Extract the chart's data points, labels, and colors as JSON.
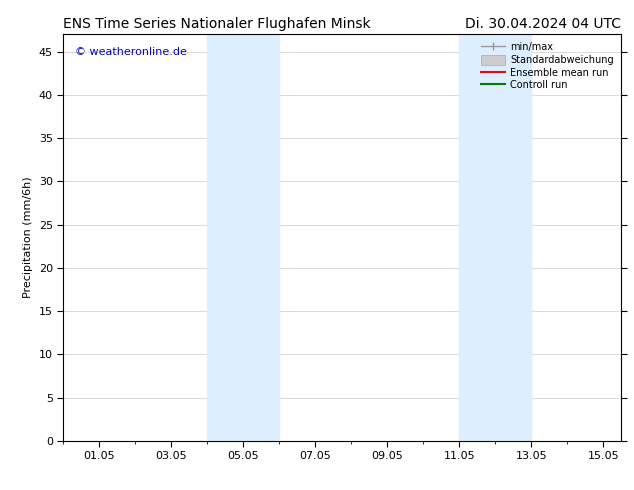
{
  "title_left": "ENS Time Series Nationaler Flughafen Minsk",
  "title_right": "Di. 30.04.2024 04 UTC",
  "ylabel": "Precipitation (mm/6h)",
  "watermark": "© weatheronline.de",
  "watermark_color": "#0000cc",
  "xlabel_ticks": [
    "01.05",
    "03.05",
    "05.05",
    "07.05",
    "09.05",
    "11.05",
    "13.05",
    "15.05"
  ],
  "xtick_values": [
    1,
    3,
    5,
    7,
    9,
    11,
    13,
    15
  ],
  "ylim": [
    0,
    47
  ],
  "yticks": [
    0,
    5,
    10,
    15,
    20,
    25,
    30,
    35,
    40,
    45
  ],
  "xlim": [
    0,
    15.5
  ],
  "shaded_regions": [
    {
      "x_start": 4.0,
      "x_end": 6.0,
      "color": "#ddeeff"
    },
    {
      "x_start": 11.0,
      "x_end": 13.0,
      "color": "#ddeeff"
    }
  ],
  "legend_items": [
    {
      "label": "min/max",
      "color": "#999999",
      "lw": 1.0,
      "style": "hline"
    },
    {
      "label": "Standardabweichung",
      "color": "#cccccc",
      "lw": 8,
      "style": "rect"
    },
    {
      "label": "Ensemble mean run",
      "color": "#ff0000",
      "lw": 1.5,
      "style": "line"
    },
    {
      "label": "Controll run",
      "color": "#008000",
      "lw": 1.5,
      "style": "line"
    }
  ],
  "background_color": "#ffffff",
  "plot_bg_color": "#ffffff",
  "grid_color": "#cccccc",
  "title_fontsize": 10,
  "label_fontsize": 8,
  "tick_fontsize": 8,
  "watermark_fontsize": 8,
  "legend_fontsize": 7
}
